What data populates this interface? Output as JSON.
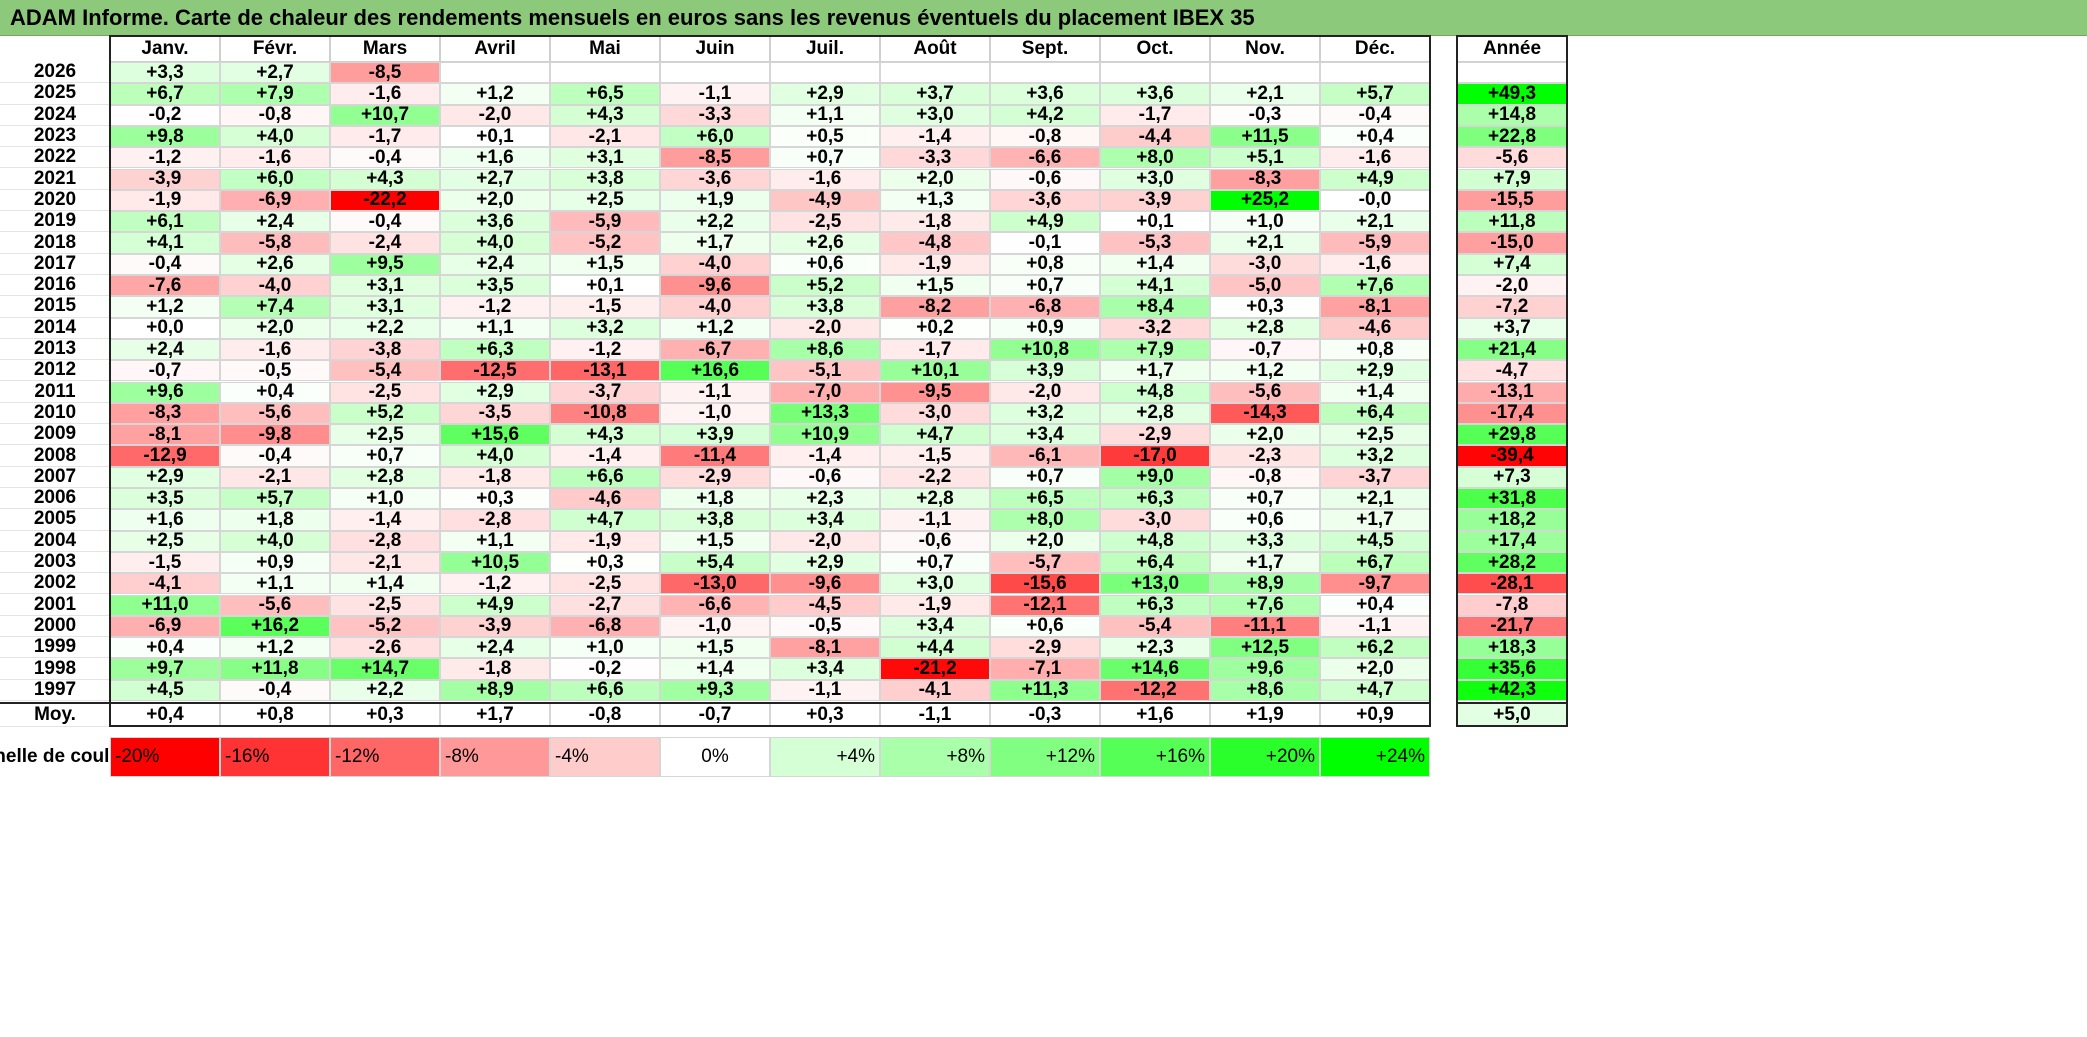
{
  "title": "ADAM Informe. Carte de chaleur des rendements mensuels en euros sans les revenus éventuels du placement IBEX 35",
  "months": [
    "Janv.",
    "Févr.",
    "Mars",
    "Avril",
    "Mai",
    "Juin",
    "Juil.",
    "Août",
    "Sept.",
    "Oct.",
    "Nov.",
    "Déc."
  ],
  "year_header": "Année",
  "avg_label": "Moy.",
  "scale_label": "Echelle de couleur",
  "colors": {
    "negative": "#ff0000",
    "neutral": "#ffffff",
    "positive": "#00ff00",
    "title_bg": "#8cc97a"
  },
  "chart_data": {
    "type": "heatmap",
    "title": "ADAM Informe. Carte de chaleur des rendements mensuels en euros sans les revenus éventuels du placement IBEX 35",
    "color_scale_pct": [
      -20,
      -16,
      -12,
      -8,
      -4,
      0,
      4,
      8,
      12,
      16,
      20,
      24
    ],
    "color_scale_labels": [
      "-20%",
      "-16%",
      "-12%",
      "-8%",
      "-4%",
      "0%",
      "+4%",
      "+8%",
      "+12%",
      "+16%",
      "+20%",
      "+24%"
    ],
    "rows": [
      {
        "year": "2026",
        "months": [
          "+3,3",
          "+2,7",
          "-8,5",
          "",
          "",
          "",
          "",
          "",
          "",
          "",
          "",
          ""
        ],
        "annual": ""
      },
      {
        "year": "2025",
        "months": [
          "+6,7",
          "+7,9",
          "-1,6",
          "+1,2",
          "+6,5",
          "-1,1",
          "+2,9",
          "+3,7",
          "+3,6",
          "+3,6",
          "+2,1",
          "+5,7"
        ],
        "annual": "+49,3"
      },
      {
        "year": "2024",
        "months": [
          "-0,2",
          "-0,8",
          "+10,7",
          "-2,0",
          "+4,3",
          "-3,3",
          "+1,1",
          "+3,0",
          "+4,2",
          "-1,7",
          "-0,3",
          "-0,4"
        ],
        "annual": "+14,8"
      },
      {
        "year": "2023",
        "months": [
          "+9,8",
          "+4,0",
          "-1,7",
          "+0,1",
          "-2,1",
          "+6,0",
          "+0,5",
          "-1,4",
          "-0,8",
          "-4,4",
          "+11,5",
          "+0,4"
        ],
        "annual": "+22,8"
      },
      {
        "year": "2022",
        "months": [
          "-1,2",
          "-1,6",
          "-0,4",
          "+1,6",
          "+3,1",
          "-8,5",
          "+0,7",
          "-3,3",
          "-6,6",
          "+8,0",
          "+5,1",
          "-1,6"
        ],
        "annual": "-5,6"
      },
      {
        "year": "2021",
        "months": [
          "-3,9",
          "+6,0",
          "+4,3",
          "+2,7",
          "+3,8",
          "-3,6",
          "-1,6",
          "+2,0",
          "-0,6",
          "+3,0",
          "-8,3",
          "+4,9"
        ],
        "annual": "+7,9"
      },
      {
        "year": "2020",
        "months": [
          "-1,9",
          "-6,9",
          "-22,2",
          "+2,0",
          "+2,5",
          "+1,9",
          "-4,9",
          "+1,3",
          "-3,6",
          "-3,9",
          "+25,2",
          "-0,0"
        ],
        "annual": "-15,5"
      },
      {
        "year": "2019",
        "months": [
          "+6,1",
          "+2,4",
          "-0,4",
          "+3,6",
          "-5,9",
          "+2,2",
          "-2,5",
          "-1,8",
          "+4,9",
          "+0,1",
          "+1,0",
          "+2,1"
        ],
        "annual": "+11,8"
      },
      {
        "year": "2018",
        "months": [
          "+4,1",
          "-5,8",
          "-2,4",
          "+4,0",
          "-5,2",
          "+1,7",
          "+2,6",
          "-4,8",
          "-0,1",
          "-5,3",
          "+2,1",
          "-5,9"
        ],
        "annual": "-15,0"
      },
      {
        "year": "2017",
        "months": [
          "-0,4",
          "+2,6",
          "+9,5",
          "+2,4",
          "+1,5",
          "-4,0",
          "+0,6",
          "-1,9",
          "+0,8",
          "+1,4",
          "-3,0",
          "-1,6"
        ],
        "annual": "+7,4"
      },
      {
        "year": "2016",
        "months": [
          "-7,6",
          "-4,0",
          "+3,1",
          "+3,5",
          "+0,1",
          "-9,6",
          "+5,2",
          "+1,5",
          "+0,7",
          "+4,1",
          "-5,0",
          "+7,6"
        ],
        "annual": "-2,0"
      },
      {
        "year": "2015",
        "months": [
          "+1,2",
          "+7,4",
          "+3,1",
          "-1,2",
          "-1,5",
          "-4,0",
          "+3,8",
          "-8,2",
          "-6,8",
          "+8,4",
          "+0,3",
          "-8,1"
        ],
        "annual": "-7,2"
      },
      {
        "year": "2014",
        "months": [
          "+0,0",
          "+2,0",
          "+2,2",
          "+1,1",
          "+3,2",
          "+1,2",
          "-2,0",
          "+0,2",
          "+0,9",
          "-3,2",
          "+2,8",
          "-4,6"
        ],
        "annual": "+3,7"
      },
      {
        "year": "2013",
        "months": [
          "+2,4",
          "-1,6",
          "-3,8",
          "+6,3",
          "-1,2",
          "-6,7",
          "+8,6",
          "-1,7",
          "+10,8",
          "+7,9",
          "-0,7",
          "+0,8"
        ],
        "annual": "+21,4"
      },
      {
        "year": "2012",
        "months": [
          "-0,7",
          "-0,5",
          "-5,4",
          "-12,5",
          "-13,1",
          "+16,6",
          "-5,1",
          "+10,1",
          "+3,9",
          "+1,7",
          "+1,2",
          "+2,9"
        ],
        "annual": "-4,7"
      },
      {
        "year": "2011",
        "months": [
          "+9,6",
          "+0,4",
          "-2,5",
          "+2,9",
          "-3,7",
          "-1,1",
          "-7,0",
          "-9,5",
          "-2,0",
          "+4,8",
          "-5,6",
          "+1,4"
        ],
        "annual": "-13,1"
      },
      {
        "year": "2010",
        "months": [
          "-8,3",
          "-5,6",
          "+5,2",
          "-3,5",
          "-10,8",
          "-1,0",
          "+13,3",
          "-3,0",
          "+3,2",
          "+2,8",
          "-14,3",
          "+6,4"
        ],
        "annual": "-17,4"
      },
      {
        "year": "2009",
        "months": [
          "-8,1",
          "-9,8",
          "+2,5",
          "+15,6",
          "+4,3",
          "+3,9",
          "+10,9",
          "+4,7",
          "+3,4",
          "-2,9",
          "+2,0",
          "+2,5"
        ],
        "annual": "+29,8"
      },
      {
        "year": "2008",
        "months": [
          "-12,9",
          "-0,4",
          "+0,7",
          "+4,0",
          "-1,4",
          "-11,4",
          "-1,4",
          "-1,5",
          "-6,1",
          "-17,0",
          "-2,3",
          "+3,2"
        ],
        "annual": "-39,4"
      },
      {
        "year": "2007",
        "months": [
          "+2,9",
          "-2,1",
          "+2,8",
          "-1,8",
          "+6,6",
          "-2,9",
          "-0,6",
          "-2,2",
          "+0,7",
          "+9,0",
          "-0,8",
          "-3,7"
        ],
        "annual": "+7,3"
      },
      {
        "year": "2006",
        "months": [
          "+3,5",
          "+5,7",
          "+1,0",
          "+0,3",
          "-4,6",
          "+1,8",
          "+2,3",
          "+2,8",
          "+6,5",
          "+6,3",
          "+0,7",
          "+2,1"
        ],
        "annual": "+31,8"
      },
      {
        "year": "2005",
        "months": [
          "+1,6",
          "+1,8",
          "-1,4",
          "-2,8",
          "+4,7",
          "+3,8",
          "+3,4",
          "-1,1",
          "+8,0",
          "-3,0",
          "+0,6",
          "+1,7"
        ],
        "annual": "+18,2"
      },
      {
        "year": "2004",
        "months": [
          "+2,5",
          "+4,0",
          "-2,8",
          "+1,1",
          "-1,9",
          "+1,5",
          "-2,0",
          "-0,6",
          "+2,0",
          "+4,8",
          "+3,3",
          "+4,5"
        ],
        "annual": "+17,4"
      },
      {
        "year": "2003",
        "months": [
          "-1,5",
          "+0,9",
          "-2,1",
          "+10,5",
          "+0,3",
          "+5,4",
          "+2,9",
          "+0,7",
          "-5,7",
          "+6,4",
          "+1,7",
          "+6,7"
        ],
        "annual": "+28,2"
      },
      {
        "year": "2002",
        "months": [
          "-4,1",
          "+1,1",
          "+1,4",
          "-1,2",
          "-2,5",
          "-13,0",
          "-9,6",
          "+3,0",
          "-15,6",
          "+13,0",
          "+8,9",
          "-9,7"
        ],
        "annual": "-28,1"
      },
      {
        "year": "2001",
        "months": [
          "+11,0",
          "-5,6",
          "-2,5",
          "+4,9",
          "-2,7",
          "-6,6",
          "-4,5",
          "-1,9",
          "-12,1",
          "+6,3",
          "+7,6",
          "+0,4"
        ],
        "annual": "-7,8"
      },
      {
        "year": "2000",
        "months": [
          "-6,9",
          "+16,2",
          "-5,2",
          "-3,9",
          "-6,8",
          "-1,0",
          "-0,5",
          "+3,4",
          "+0,6",
          "-5,4",
          "-11,1",
          "-1,1"
        ],
        "annual": "-21,7"
      },
      {
        "year": "1999",
        "months": [
          "+0,4",
          "+1,2",
          "-2,6",
          "+2,4",
          "+1,0",
          "+1,5",
          "-8,1",
          "+4,4",
          "-2,9",
          "+2,3",
          "+12,5",
          "+6,2"
        ],
        "annual": "+18,3"
      },
      {
        "year": "1998",
        "months": [
          "+9,7",
          "+11,8",
          "+14,7",
          "-1,8",
          "-0,2",
          "+1,4",
          "+3,4",
          "-21,2",
          "-7,1",
          "+14,6",
          "+9,6",
          "+2,0"
        ],
        "annual": "+35,6"
      },
      {
        "year": "1997",
        "months": [
          "+4,5",
          "-0,4",
          "+2,2",
          "+8,9",
          "+6,6",
          "+9,3",
          "-1,1",
          "-4,1",
          "+11,3",
          "-12,2",
          "+8,6",
          "+4,7"
        ],
        "annual": "+42,3"
      }
    ],
    "average": {
      "months": [
        "+0,4",
        "+0,8",
        "+0,3",
        "+1,7",
        "-0,8",
        "-0,7",
        "+0,3",
        "-1,1",
        "-0,3",
        "+1,6",
        "+1,9",
        "+0,9"
      ],
      "annual": "+5,0"
    }
  }
}
